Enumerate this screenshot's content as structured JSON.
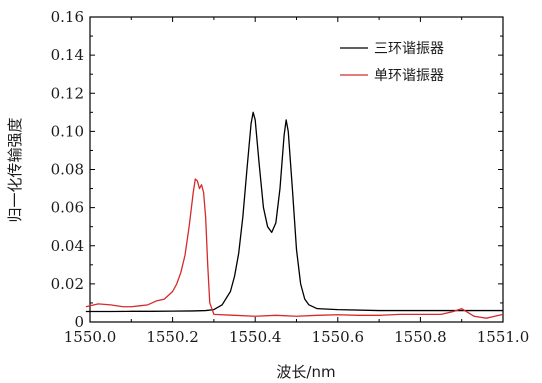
{
  "chart_data": {
    "type": "line",
    "xlabel": "波长/nm",
    "ylabel": "归一化传输强度",
    "xlim": [
      1550.0,
      1551.0
    ],
    "ylim": [
      0,
      0.16
    ],
    "xticks": [
      "1550.0",
      "1550.2",
      "1550.4",
      "1550.6",
      "1550.8",
      "1551.0"
    ],
    "yticks": [
      "0",
      "0.02",
      "0.04",
      "0.06",
      "0.08",
      "0.10",
      "0.12",
      "0.14",
      "0.16"
    ],
    "grid": false,
    "legend_position": "top-right",
    "series": [
      {
        "name": "三环谐振器",
        "color": "#000000",
        "x": [
          1549.99,
          1550.05,
          1550.1,
          1550.15,
          1550.2,
          1550.25,
          1550.28,
          1550.3,
          1550.32,
          1550.34,
          1550.35,
          1550.36,
          1550.37,
          1550.38,
          1550.39,
          1550.395,
          1550.4,
          1550.41,
          1550.42,
          1550.43,
          1550.44,
          1550.45,
          1550.46,
          1550.47,
          1550.475,
          1550.48,
          1550.49,
          1550.5,
          1550.51,
          1550.52,
          1550.53,
          1550.55,
          1550.6,
          1550.7,
          1550.8,
          1550.9,
          1551.0
        ],
        "y": [
          0.0055,
          0.0055,
          0.0056,
          0.0056,
          0.0057,
          0.0058,
          0.006,
          0.0065,
          0.009,
          0.016,
          0.024,
          0.036,
          0.055,
          0.08,
          0.104,
          0.11,
          0.106,
          0.082,
          0.06,
          0.05,
          0.047,
          0.052,
          0.07,
          0.098,
          0.106,
          0.1,
          0.07,
          0.038,
          0.02,
          0.012,
          0.009,
          0.007,
          0.0065,
          0.006,
          0.006,
          0.006,
          0.006
        ]
      },
      {
        "name": "单环谐振器",
        "color": "#d42a2a",
        "x": [
          1549.99,
          1550.02,
          1550.05,
          1550.08,
          1550.1,
          1550.12,
          1550.14,
          1550.16,
          1550.18,
          1550.2,
          1550.21,
          1550.22,
          1550.23,
          1550.24,
          1550.25,
          1550.255,
          1550.26,
          1550.265,
          1550.27,
          1550.275,
          1550.28,
          1550.285,
          1550.29,
          1550.3,
          1550.35,
          1550.4,
          1550.45,
          1550.5,
          1550.55,
          1550.6,
          1550.65,
          1550.7,
          1550.75,
          1550.8,
          1550.85,
          1550.88,
          1550.9,
          1550.93,
          1550.96,
          1550.98,
          1551.0
        ],
        "y": [
          0.008,
          0.0095,
          0.009,
          0.008,
          0.008,
          0.0085,
          0.009,
          0.011,
          0.012,
          0.016,
          0.02,
          0.026,
          0.035,
          0.05,
          0.068,
          0.075,
          0.074,
          0.07,
          0.072,
          0.068,
          0.055,
          0.03,
          0.01,
          0.004,
          0.0035,
          0.003,
          0.0035,
          0.003,
          0.0035,
          0.0038,
          0.0035,
          0.0035,
          0.004,
          0.004,
          0.004,
          0.0055,
          0.007,
          0.003,
          0.002,
          0.003,
          0.004
        ]
      }
    ]
  }
}
